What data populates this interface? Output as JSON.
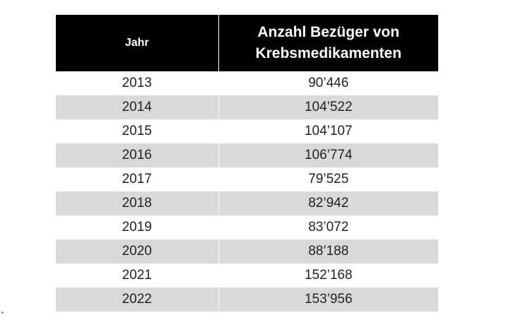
{
  "chart_data": {
    "type": "table",
    "columns": [
      "Jahr",
      "Anzahl Bezüger von Krebsmedikamenten"
    ],
    "header": {
      "year": "Jahr",
      "count_line1": "Anzahl Bezüger von",
      "count_line2": "Krebsmedikamenten"
    },
    "rows": [
      {
        "year": "2013",
        "value": "90’446"
      },
      {
        "year": "2014",
        "value": "104’522"
      },
      {
        "year": "2015",
        "value": "104’107"
      },
      {
        "year": "2016",
        "value": "106’774"
      },
      {
        "year": "2017",
        "value": "79’525"
      },
      {
        "year": "2018",
        "value": "82’942"
      },
      {
        "year": "2019",
        "value": "83’072"
      },
      {
        "year": "2020",
        "value": "88’188"
      },
      {
        "year": "2021",
        "value": "152’168"
      },
      {
        "year": "2022",
        "value": "153’956"
      }
    ],
    "colors": {
      "header_background": "#000000",
      "header_text": "#ffffff",
      "stripe": "#d9d9d9"
    }
  }
}
